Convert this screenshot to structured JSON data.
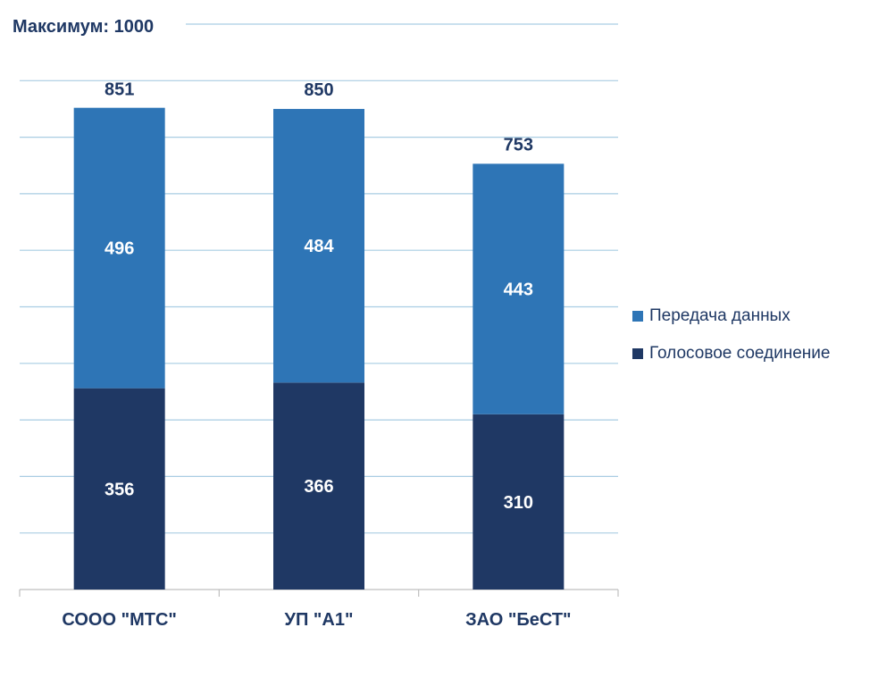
{
  "chart_data": {
    "type": "bar",
    "stacked": true,
    "title": "Максимум: 1000",
    "categories": [
      "СООО \"МТС\"",
      "УП \"А1\"",
      "ЗАО \"БеСТ\""
    ],
    "series": [
      {
        "name": "Голосовое соединение",
        "values": [
          356,
          366,
          310
        ],
        "color": "#1f3864"
      },
      {
        "name": "Передача данных",
        "values": [
          496,
          484,
          443
        ],
        "color": "#2e75b6"
      }
    ],
    "totals": [
      851,
      850,
      753
    ],
    "ylim": [
      0,
      1000
    ],
    "grid": true,
    "legend": "right"
  }
}
